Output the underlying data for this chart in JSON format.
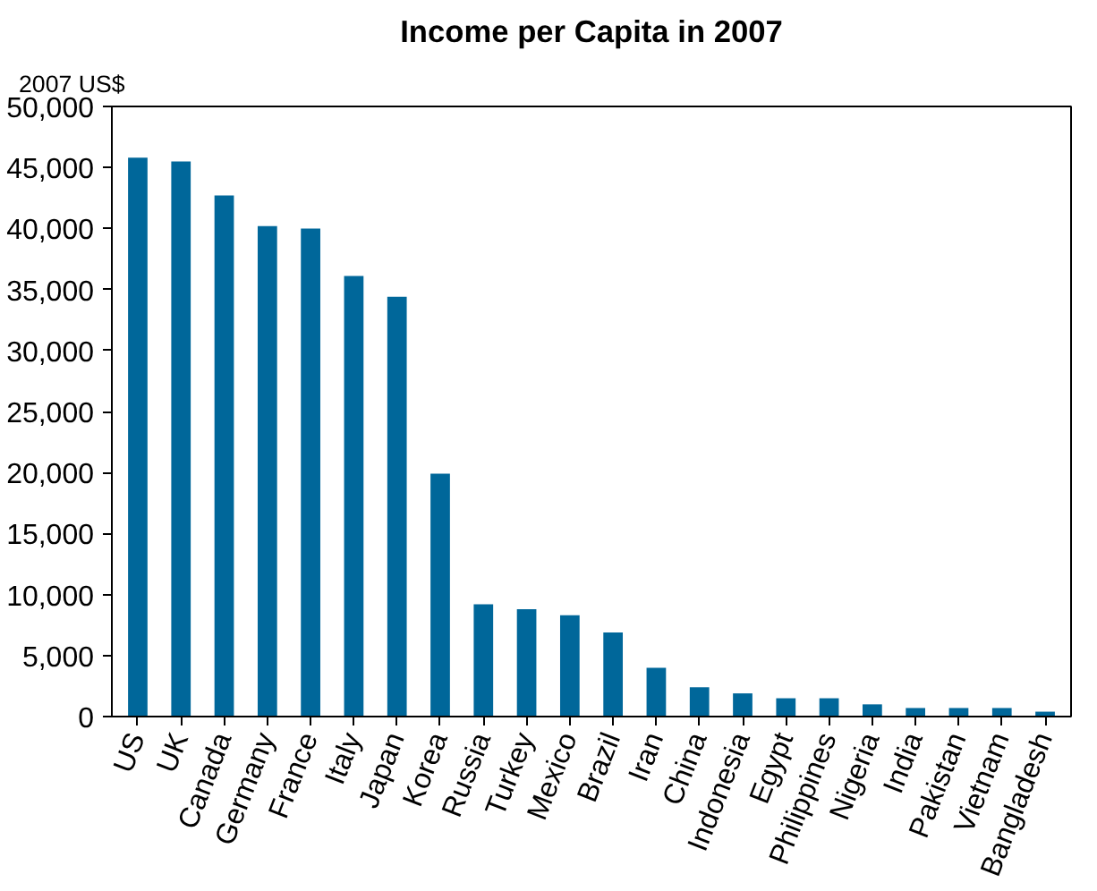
{
  "chart_data": {
    "type": "bar",
    "title": "Income per Capita in 2007",
    "ylabel": "2007 US$",
    "categories": [
      "US",
      "UK",
      "Canada",
      "Germany",
      "France",
      "Italy",
      "Japan",
      "Korea",
      "Russia",
      "Turkey",
      "Mexico",
      "Brazil",
      "Iran",
      "China",
      "Indonesia",
      "Egypt",
      "Philippines",
      "Nigeria",
      "India",
      "Pakistan",
      "Vietnam",
      "Bangladesh"
    ],
    "values": [
      45800,
      45500,
      42700,
      40200,
      40000,
      36100,
      34400,
      19900,
      9200,
      8800,
      8300,
      6900,
      4000,
      2400,
      1900,
      1500,
      1500,
      1000,
      700,
      700,
      700,
      400
    ],
    "color": "#00679a",
    "ylim": [
      0,
      50000
    ],
    "yticks": [
      {
        "value": 0,
        "label": "0"
      },
      {
        "value": 5000,
        "label": "5,000"
      },
      {
        "value": 10000,
        "label": "10,000"
      },
      {
        "value": 15000,
        "label": "15,000"
      },
      {
        "value": 20000,
        "label": "20,000"
      },
      {
        "value": 25000,
        "label": "25,000"
      },
      {
        "value": 30000,
        "label": "30,000"
      },
      {
        "value": 35000,
        "label": "35,000"
      },
      {
        "value": 40000,
        "label": "40,000"
      },
      {
        "value": 45000,
        "label": "45,000"
      },
      {
        "value": 50000,
        "label": "50,000"
      }
    ],
    "grid": false
  }
}
